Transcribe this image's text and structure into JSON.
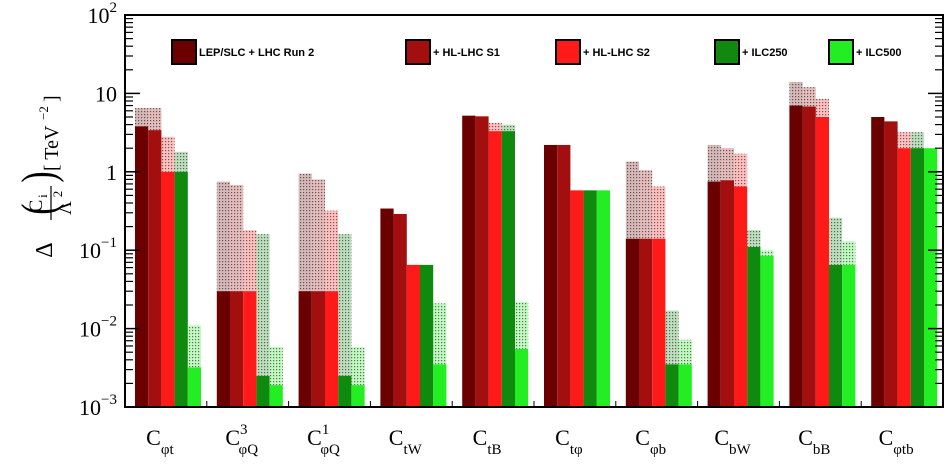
{
  "chart_data": {
    "type": "bar",
    "title": "",
    "xlabel": "",
    "ylabel": {
      "delta": "Δ",
      "numerator": "C",
      "numerator_sub": "i",
      "denominator": "Λ",
      "denominator_sup": "2",
      "unit": "[ TeV",
      "unit_sup": "−2",
      "unit_close": "]"
    },
    "y_scale": "log",
    "ylim": [
      0.001,
      100
    ],
    "y_ticks": [
      {
        "value": 0.001,
        "base": "10",
        "exp": "−3"
      },
      {
        "value": 0.01,
        "base": "10",
        "exp": "−2"
      },
      {
        "value": 0.1,
        "base": "10",
        "exp": "−1"
      },
      {
        "value": 1,
        "base": "1",
        "exp": ""
      },
      {
        "value": 10,
        "base": "10",
        "exp": ""
      },
      {
        "value": 100,
        "base": "10",
        "exp": "2"
      }
    ],
    "categories": [
      {
        "main": "C",
        "sub": "φt",
        "sup": ""
      },
      {
        "main": "C",
        "sub": "φQ",
        "sup": "3"
      },
      {
        "main": "C",
        "sub": "φQ",
        "sup": "1"
      },
      {
        "main": "C",
        "sub": "tW",
        "sup": ""
      },
      {
        "main": "C",
        "sub": "tB",
        "sup": ""
      },
      {
        "main": "C",
        "sub": "tφ",
        "sup": ""
      },
      {
        "main": "C",
        "sub": "φb",
        "sup": ""
      },
      {
        "main": "C",
        "sub": "bW",
        "sup": ""
      },
      {
        "main": "C",
        "sub": "bB",
        "sup": ""
      },
      {
        "main": "C",
        "sub": "φtb",
        "sup": ""
      }
    ],
    "legend_placement": "top",
    "series": [
      {
        "name": "LEP/SLC + LHC Run 2",
        "color": "#6b0000",
        "values": [
          3.8,
          0.03,
          0.03,
          0.34,
          5.2,
          2.2,
          0.14,
          0.75,
          7.0,
          5.0
        ],
        "marginals": [
          6.5,
          0.75,
          0.95,
          null,
          null,
          null,
          1.35,
          2.2,
          14.0,
          null
        ]
      },
      {
        "name": "+ HL-LHC S1",
        "color": "#a30f0f",
        "values": [
          3.4,
          0.03,
          0.03,
          0.29,
          5.1,
          2.2,
          0.14,
          0.78,
          6.8,
          4.4
        ],
        "marginals": [
          6.5,
          0.68,
          0.8,
          null,
          null,
          null,
          1.05,
          2.0,
          12.0,
          null
        ]
      },
      {
        "name": "+ HL-LHC S2",
        "color": "#ff1a1a",
        "values": [
          1.0,
          0.03,
          0.03,
          0.065,
          3.3,
          0.58,
          0.14,
          0.65,
          5.0,
          2.0
        ],
        "marginals": [
          2.8,
          0.18,
          0.32,
          null,
          4.2,
          null,
          0.65,
          1.7,
          8.5,
          3.2
        ]
      },
      {
        "name": "+ ILC250",
        "color": "#0f8a0f",
        "values": [
          1.0,
          0.0025,
          0.0025,
          0.065,
          3.3,
          0.58,
          0.0035,
          0.11,
          0.065,
          2.0
        ],
        "marginals": [
          1.8,
          0.16,
          0.16,
          null,
          4.0,
          null,
          0.017,
          0.18,
          0.26,
          3.2
        ]
      },
      {
        "name": "+ ILC500",
        "color": "#22ee22",
        "values": [
          0.0032,
          0.0019,
          0.0019,
          0.0035,
          0.0055,
          0.58,
          0.0035,
          0.085,
          0.065,
          2.0
        ],
        "marginals": [
          0.011,
          0.0058,
          0.0058,
          0.021,
          0.022,
          null,
          0.0072,
          0.1,
          0.13,
          null
        ]
      }
    ]
  }
}
